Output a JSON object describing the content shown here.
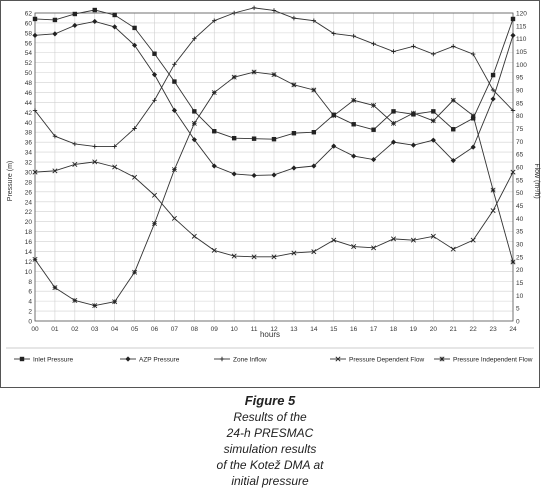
{
  "chart_data": {
    "type": "line",
    "xlabel": "hours",
    "ylabel": "Pressure (m)",
    "y2label": "Flow (m³/h)",
    "x": [
      "00",
      "01",
      "02",
      "03",
      "04",
      "05",
      "06",
      "07",
      "08",
      "09",
      "10",
      "11",
      "12",
      "13",
      "14",
      "15",
      "16",
      "17",
      "18",
      "19",
      "20",
      "21",
      "22",
      "23",
      "24"
    ],
    "ylim": [
      0,
      62
    ],
    "y2lim": [
      0,
      120
    ],
    "yticks": [
      0,
      2,
      4,
      6,
      8,
      10,
      12,
      14,
      16,
      18,
      20,
      22,
      24,
      26,
      28,
      30,
      32,
      34,
      36,
      38,
      40,
      42,
      44,
      46,
      48,
      50,
      52,
      54,
      56,
      58,
      60,
      62
    ],
    "y2ticks": [
      0,
      5,
      10,
      15,
      20,
      25,
      30,
      35,
      40,
      45,
      50,
      55,
      60,
      65,
      70,
      75,
      80,
      85,
      90,
      95,
      100,
      105,
      110,
      115,
      120
    ],
    "grid": true,
    "legend_position": "bottom",
    "series": [
      {
        "name": "Inlet Pressure",
        "axis": "left",
        "marker": "square",
        "values": [
          60.8,
          60.6,
          61.8,
          62.6,
          61.6,
          59.0,
          53.8,
          48.2,
          42.2,
          38.2,
          36.8,
          36.7,
          36.6,
          37.8,
          38.0,
          41.5,
          39.6,
          38.5,
          42.2,
          41.6,
          42.2,
          38.6,
          40.8,
          49.5,
          60.8
        ]
      },
      {
        "name": "AZP Pressure",
        "axis": "left",
        "marker": "diamond",
        "values": [
          57.5,
          57.8,
          59.5,
          60.3,
          59.2,
          55.5,
          49.6,
          42.4,
          36.5,
          31.2,
          29.6,
          29.3,
          29.4,
          30.8,
          31.2,
          35.2,
          33.2,
          32.5,
          36.0,
          35.4,
          36.4,
          32.3,
          35.0,
          44.7,
          57.5
        ]
      },
      {
        "name": "Zone Inflow",
        "axis": "right",
        "marker": "plus",
        "values": [
          82,
          72,
          69,
          68,
          68,
          75,
          86,
          100,
          110,
          117,
          120,
          122,
          121,
          118,
          117,
          112,
          111,
          108,
          105,
          107,
          104,
          107,
          104,
          90,
          82
        ]
      },
      {
        "name": "Pressure Dependent Flow",
        "axis": "right",
        "marker": "cross",
        "values": [
          58,
          58.5,
          61,
          62,
          60,
          56,
          49,
          40,
          33,
          27.5,
          25.3,
          25,
          25,
          26.5,
          27,
          31.5,
          29,
          28.5,
          32,
          31.5,
          33,
          28,
          31.5,
          43,
          58
        ]
      },
      {
        "name": "Pressure Independent Flow",
        "axis": "right",
        "marker": "asterisk",
        "values": [
          24,
          13,
          8,
          6,
          7.5,
          19,
          38,
          59,
          77,
          89,
          95,
          97,
          96,
          92,
          90,
          80,
          86,
          84,
          77,
          81,
          78,
          86,
          80,
          51,
          23
        ]
      }
    ]
  },
  "caption": {
    "figure_label": "Figure 5",
    "lines": [
      "Results of the",
      "24-h PRESMAC",
      "simulation results",
      "of the Kotež DMA at",
      "initial pressure"
    ]
  }
}
